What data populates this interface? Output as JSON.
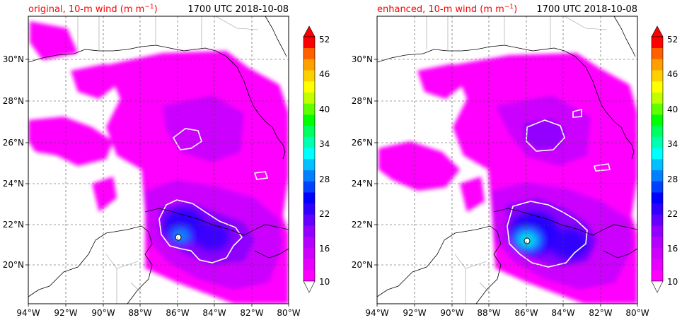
{
  "panels": [
    {
      "id": "original",
      "left_title": "original, 10-m wind (m m",
      "title_superscript": "−1",
      "title_close": ")",
      "right_title": "1700 UTC 2018-10-08"
    },
    {
      "id": "enhanced",
      "left_title": "enhanced, 10-m wind (m m",
      "title_superscript": "−1",
      "title_close": ")",
      "right_title": "1700 UTC 2018-10-08"
    }
  ],
  "title_color": "#ff0000",
  "map": {
    "lon_labels": [
      "94°W",
      "92°W",
      "90°W",
      "88°W",
      "86°W",
      "84°W",
      "82°W",
      "80°W"
    ],
    "lat_labels": [
      "30°N",
      "28°N",
      "26°N",
      "24°N",
      "22°N",
      "20°N"
    ],
    "lon_range": [
      -94,
      -80
    ],
    "lat_range": [
      18.2,
      32
    ],
    "gridlines": "dashed"
  },
  "colorbar": {
    "range": [
      10,
      52
    ],
    "tick_labels": [
      "10",
      "16",
      "22",
      "28",
      "34",
      "40",
      "46",
      "52"
    ],
    "extend": "both",
    "colors": [
      "#ff00ff",
      "#e800ff",
      "#d000ff",
      "#b400ff",
      "#9400ff",
      "#6400ff",
      "#3000ff",
      "#0000ff",
      "#0040ff",
      "#0080ff",
      "#00c0ff",
      "#00ffff",
      "#00ffb0",
      "#00ff60",
      "#00ff00",
      "#60ff00",
      "#c0ff00",
      "#ffff00",
      "#ffd000",
      "#ffa000",
      "#ff6000",
      "#ff0000"
    ]
  }
}
